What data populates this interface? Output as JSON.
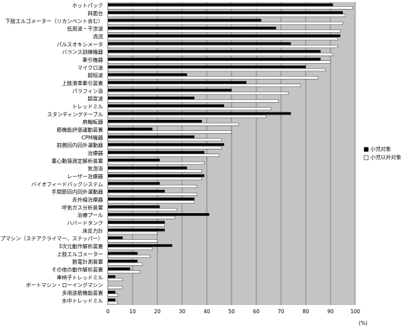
{
  "chart_data": {
    "type": "bar",
    "orientation": "horizontal",
    "categories": [
      "ホットパック",
      "斜面台",
      "下肢エルゴメーター（リカンベント含む）",
      "低周波・干渉波",
      "渦流",
      "パルスオキシメータ",
      "バランス訓練機器",
      "牽引機器",
      "マイクロ波",
      "超短波",
      "上肢滑車牽引装置",
      "パラフィン浴",
      "超音波",
      "トレッドミル",
      "スタンディングテーブル",
      "肩輪転器",
      "筋機能評価運動装置",
      "CPM機器",
      "前腕回内回外運動器",
      "治療器",
      "重心動揺測定解析装置",
      "気泡浴",
      "レーザー治療器",
      "バイオフィードバックシステム",
      "手関節回内回外運動器",
      "赤外線治療器",
      "呼気ガス分析装置",
      "治療プール",
      "ハバードタンク",
      "床反力計",
      "ステップマシン（ステアクライマー、ステッパー）",
      "3次元動作解析装置",
      "上肢エルゴメーター",
      "筋電計測装置",
      "その他の動作解析装置",
      "車椅子トレッドミル",
      "ボートマシン・ローイングマシン",
      "多用途筋機能装置",
      "水中トレッドミル"
    ],
    "series": [
      {
        "name": "小児対象",
        "color": "#000000",
        "values": [
          91,
          95,
          62,
          68,
          94,
          74,
          86,
          86,
          80,
          32,
          56,
          50,
          35,
          47,
          74,
          38,
          18,
          35,
          47,
          39,
          21,
          32,
          39,
          21,
          23,
          35,
          21,
          41,
          23,
          23,
          6,
          26,
          12,
          12,
          9,
          3,
          0,
          3,
          3
        ]
      },
      {
        "name": "小児以外対象",
        "color": "#ffffff",
        "values": [
          99,
          96,
          95,
          94,
          93,
          93,
          91,
          90,
          88,
          85,
          78,
          73,
          69,
          66,
          64,
          53,
          50,
          46,
          46,
          45,
          39,
          38,
          38,
          36,
          36,
          35,
          28,
          27,
          23,
          20,
          20,
          18,
          17,
          14,
          13,
          6,
          6,
          4,
          4
        ]
      }
    ],
    "xlim": [
      0,
      100
    ],
    "xticks": [
      0,
      10,
      20,
      30,
      40,
      50,
      60,
      70,
      80,
      90,
      100
    ],
    "x_label": "(%)",
    "grid": true
  }
}
